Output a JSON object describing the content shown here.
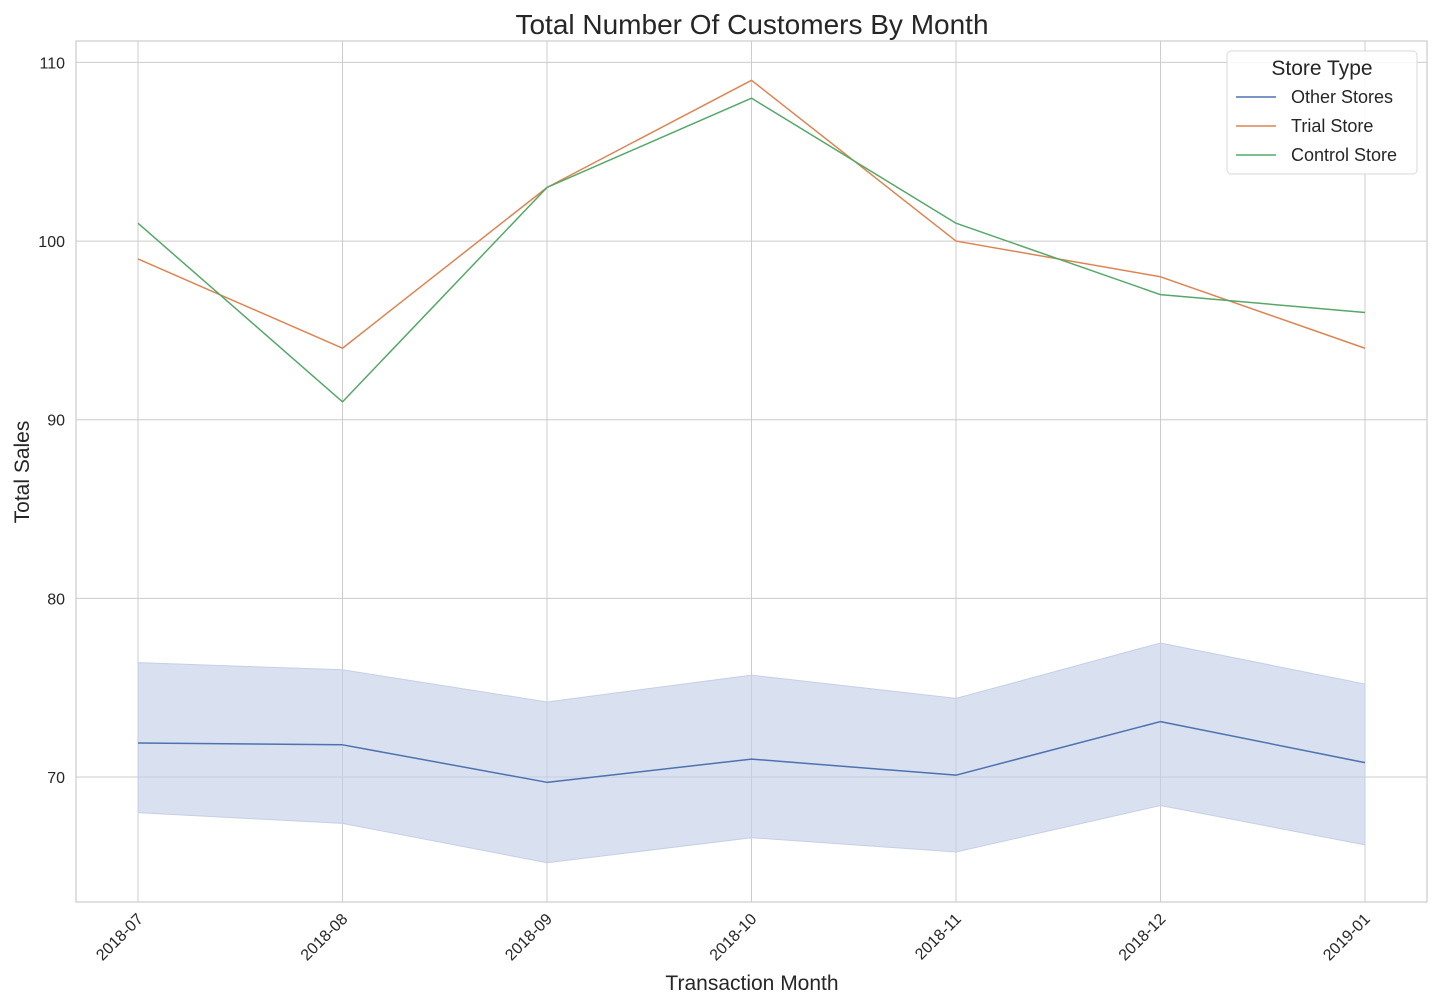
{
  "chart_data": {
    "type": "line",
    "title": "Total Number Of Customers By Month",
    "xlabel": "Transaction Month",
    "ylabel": "Total Sales",
    "categories": [
      "2018-07",
      "2018-08",
      "2018-09",
      "2018-10",
      "2018-11",
      "2018-12",
      "2019-01"
    ],
    "ylim": [
      63,
      111.2
    ],
    "yticks": [
      70,
      80,
      90,
      100,
      110
    ],
    "grid": true,
    "legend": {
      "title": "Store Type",
      "position": "top-right"
    },
    "series": [
      {
        "name": "Other Stores",
        "color": "#4c72b0",
        "values": [
          71.9,
          71.8,
          69.7,
          71.0,
          70.1,
          73.1,
          70.8
        ],
        "ci_low": [
          68.0,
          67.4,
          65.2,
          66.6,
          65.8,
          68.4,
          66.2
        ],
        "ci_high": [
          76.4,
          76.0,
          74.2,
          75.7,
          74.4,
          77.5,
          75.2
        ],
        "ci_color": "#c5cfe6"
      },
      {
        "name": "Trial Store",
        "color": "#dd8452",
        "values": [
          99,
          94,
          103,
          109,
          100,
          98,
          94
        ]
      },
      {
        "name": "Control Store",
        "color": "#55a868",
        "values": [
          101,
          91,
          103,
          108,
          101,
          97,
          96
        ]
      }
    ]
  }
}
